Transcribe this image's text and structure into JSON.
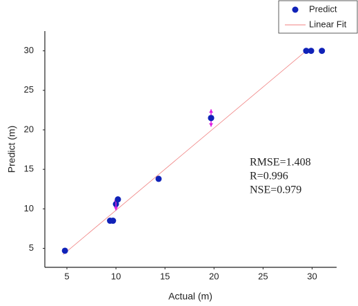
{
  "chart_data": {
    "type": "scatter",
    "x_label": "Actual (m)",
    "y_label": "Predict (m)",
    "xlim": [
      2.75,
      32.5
    ],
    "ylim": [
      2.6,
      32.5
    ],
    "xticks": [
      5,
      10,
      15,
      20,
      25,
      30
    ],
    "yticks": [
      5,
      10,
      15,
      20,
      25,
      30
    ],
    "legend": "upper right",
    "series": [
      {
        "name": "Predict",
        "color": "#1022b8",
        "x": [
          4.8,
          9.4,
          9.7,
          10.0,
          10.2,
          14.35,
          19.7,
          29.4,
          29.9,
          31.0
        ],
        "values": [
          4.7,
          8.5,
          8.5,
          10.6,
          11.2,
          13.8,
          21.5,
          30,
          30,
          30
        ],
        "errors": [
          null,
          null,
          null,
          0.8,
          null,
          null,
          null,
          null,
          null,
          null
        ],
        "error_color": "#e020e0"
      },
      {
        "name": "Linear Fit",
        "color": "#f08080",
        "x": [
          4.6,
          29.4
        ],
        "values": [
          4.2,
          30
        ]
      }
    ],
    "error_bars": [
      {
        "x": 19.7,
        "value": 21.5,
        "error": 1.1
      }
    ],
    "annotations": [
      "RMSE=1.408",
      "R=0.996",
      "NSE=0.979"
    ]
  }
}
